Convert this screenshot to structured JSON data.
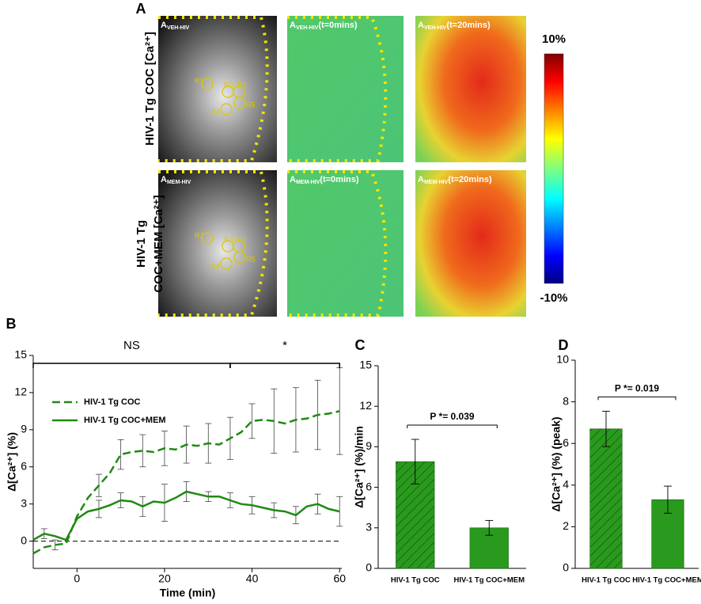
{
  "panel_a": {
    "label": "A",
    "rows": [
      {
        "lines": [
          "HIV-1 Tg COC [Ca²⁺]"
        ]
      },
      {
        "lines": [
          "HIV-1 Tg",
          "COC+MEM [Ca²⁺]"
        ]
      }
    ],
    "images": [
      [
        {
          "main": "A",
          "sub": "VEH-HIV"
        },
        {
          "main": "A",
          "sub": "VEH-HIV",
          "suffix": "(t=0mins)"
        },
        {
          "main": "A",
          "sub": "VEH-HIV",
          "suffix": "(t=20mins)"
        }
      ],
      [
        {
          "main": "A",
          "sub": "MEM-HIV"
        },
        {
          "main": "A",
          "sub": "MEM-HIV",
          "suffix": "(t=0mins)"
        },
        {
          "main": "A",
          "sub": "MEM-HIV",
          "suffix": "(t=20mins)"
        }
      ]
    ],
    "rois": [
      "R1",
      "R2",
      "R3",
      "R4",
      "R5"
    ],
    "colorbar": {
      "max_label": "10%",
      "min_label": "-10%"
    }
  },
  "chart_data": [
    {
      "type": "line",
      "panel": "B",
      "xlabel": "Time (min)",
      "ylabel": "Δ[Ca²⁺] (%)",
      "x": [
        -10,
        -7.5,
        -5,
        -2.5,
        0,
        2.5,
        5,
        7.5,
        10,
        12.5,
        15,
        17.5,
        20,
        22.5,
        25,
        27.5,
        30,
        32.5,
        35,
        37.5,
        40,
        42.5,
        45,
        47.5,
        50,
        52.5,
        55,
        57.5,
        60
      ],
      "series": [
        {
          "name": "HIV-1 Tg COC",
          "color": "#1f8a12",
          "dashed": true,
          "values": [
            -1,
            -0.5,
            -0.3,
            -0.2,
            2.0,
            3.5,
            4.5,
            5.5,
            7.0,
            7.2,
            7.3,
            7.2,
            7.5,
            7.4,
            7.8,
            7.7,
            7.9,
            7.8,
            8.3,
            8.8,
            9.7,
            9.8,
            9.7,
            9.5,
            9.8,
            9.9,
            10.2,
            10.3,
            10.5
          ],
          "errors": [
            null,
            null,
            0.4,
            null,
            null,
            null,
            0.9,
            null,
            1.2,
            null,
            1.3,
            null,
            1.4,
            null,
            1.5,
            null,
            1.6,
            null,
            1.7,
            null,
            1.4,
            null,
            2.6,
            null,
            2.6,
            null,
            2.8,
            null,
            3.5
          ]
        },
        {
          "name": "HIV-1 Tg COC+MEM",
          "color": "#1f8a12",
          "dashed": false,
          "values": [
            0.1,
            0.6,
            0.4,
            0.1,
            1.8,
            2.4,
            2.6,
            2.9,
            3.3,
            3.2,
            2.8,
            3.2,
            3.1,
            3.5,
            4.0,
            3.8,
            3.6,
            3.6,
            3.3,
            3.0,
            2.9,
            2.7,
            2.5,
            2.4,
            2.1,
            2.8,
            3.0,
            2.6,
            2.4
          ],
          "errors": [
            null,
            0.4,
            null,
            null,
            null,
            null,
            0.7,
            null,
            0.6,
            null,
            0.8,
            null,
            1.5,
            null,
            0.8,
            null,
            0.4,
            null,
            0.6,
            null,
            0.7,
            null,
            0.6,
            null,
            0.7,
            null,
            0.8,
            null,
            1.2
          ]
        }
      ],
      "xlim": [
        -10,
        60.5
      ],
      "xticks": [
        0,
        20,
        40,
        60
      ],
      "ylim": [
        -2.2,
        15
      ],
      "yticks": [
        0,
        3,
        6,
        9,
        12,
        15
      ],
      "legend": "upper left",
      "brackets": [
        {
          "label": "NS",
          "x": [
            -10,
            35
          ]
        },
        {
          "label": "*",
          "x": [
            35,
            60
          ]
        }
      ]
    },
    {
      "type": "bar",
      "panel": "C",
      "ylabel": "Δ[Ca²⁺] (%)/min",
      "categories": [
        "HIV-1 Tg COC",
        "HIV-1 Tg COC+MEM"
      ],
      "values": [
        7.9,
        3.0
      ],
      "errors": [
        1.65,
        0.55
      ],
      "color": "#2a9a1e",
      "hatch": [
        true,
        false
      ],
      "ylim": [
        0,
        15
      ],
      "yticks": [
        0,
        3,
        6,
        9,
        12,
        15
      ],
      "comparison": "P *= 0.039"
    },
    {
      "type": "bar",
      "panel": "D",
      "ylabel": "Δ[Ca²⁺] (%) (peak)",
      "categories": [
        "HIV-1 Tg COC",
        "HIV-1 Tg COC+MEM"
      ],
      "values": [
        6.7,
        3.3
      ],
      "errors": [
        0.85,
        0.65
      ],
      "color": "#2a9a1e",
      "hatch": [
        true,
        false
      ],
      "ylim": [
        0,
        10
      ],
      "yticks": [
        0,
        2,
        4,
        6,
        8,
        10
      ],
      "comparison": "P *= 0.019"
    }
  ]
}
